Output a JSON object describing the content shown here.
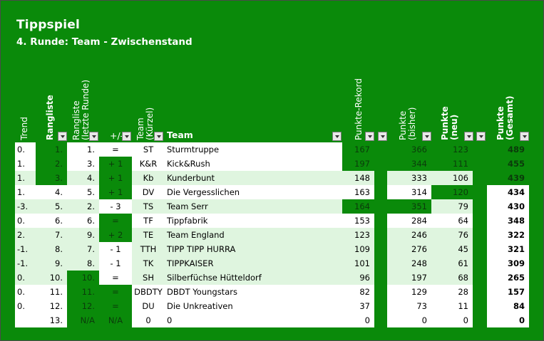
{
  "title": "Tippspiel",
  "subtitle": "4. Runde: Team - Zwischenstand",
  "headers": {
    "trend": "Trend",
    "rangliste": "Rangliste",
    "rangliste_prev": "Rangliste\n(letzte Runde)",
    "plusminus": "+/-",
    "team_short": "Team\n(Kürzel)",
    "team": "Team",
    "rekord": "Punkte-Rekord",
    "bisher": "Punkte\n(bisher)",
    "neu": "Punkte\n(neu)",
    "gesamt": "Punkte\n(Gesamt)"
  },
  "rows": [
    {
      "trend": "0.",
      "rank": "1.",
      "prev": "1.",
      "pm": "=",
      "kz": "ST",
      "team": "Sturmtruppe",
      "rekord": "167",
      "bisher": "366",
      "neu": "123",
      "gesamt": "489"
    },
    {
      "trend": "1.",
      "rank": "2.",
      "prev": "3.",
      "pm": "+ 1",
      "kz": "K&R",
      "team": "Kick&Rush",
      "rekord": "197",
      "bisher": "344",
      "neu": "111",
      "gesamt": "455"
    },
    {
      "trend": "1.",
      "rank": "3.",
      "prev": "4.",
      "pm": "+ 1",
      "kz": "Kb",
      "team": "Kunderbunt",
      "rekord": "148",
      "bisher": "333",
      "neu": "106",
      "gesamt": "439"
    },
    {
      "trend": "1.",
      "rank": "4.",
      "prev": "5.",
      "pm": "+ 1",
      "kz": "DV",
      "team": "Die Vergesslichen",
      "rekord": "163",
      "bisher": "314",
      "neu": "120",
      "gesamt": "434"
    },
    {
      "trend": "-3.",
      "rank": "5.",
      "prev": "2.",
      "pm": "- 3",
      "kz": "TS",
      "team": "Team Serr",
      "rekord": "164",
      "bisher": "351",
      "neu": "79",
      "gesamt": "430"
    },
    {
      "trend": "0.",
      "rank": "6.",
      "prev": "6.",
      "pm": "=",
      "kz": "TF",
      "team": "Tippfabrik",
      "rekord": "153",
      "bisher": "284",
      "neu": "64",
      "gesamt": "348"
    },
    {
      "trend": "2.",
      "rank": "7.",
      "prev": "9.",
      "pm": "+ 2",
      "kz": "TE",
      "team": "Team England",
      "rekord": "123",
      "bisher": "246",
      "neu": "76",
      "gesamt": "322"
    },
    {
      "trend": "-1.",
      "rank": "8.",
      "prev": "7.",
      "pm": "- 1",
      "kz": "TTH",
      "team": "TIPP TIPP HURRA",
      "rekord": "109",
      "bisher": "276",
      "neu": "45",
      "gesamt": "321"
    },
    {
      "trend": "-1.",
      "rank": "9.",
      "prev": "8.",
      "pm": "- 1",
      "kz": "TK",
      "team": "TIPPKAISER",
      "rekord": "101",
      "bisher": "248",
      "neu": "61",
      "gesamt": "309"
    },
    {
      "trend": "0.",
      "rank": "10.",
      "prev": "10.",
      "pm": "=",
      "kz": "SH",
      "team": "Silberfüchse Hütteldorf",
      "rekord": "96",
      "bisher": "197",
      "neu": "68",
      "gesamt": "265"
    },
    {
      "trend": "0.",
      "rank": "11.",
      "prev": "11.",
      "pm": "=",
      "kz": "DBDTY",
      "team": "DBDT Youngstars",
      "rekord": "82",
      "bisher": "129",
      "neu": "28",
      "gesamt": "157"
    },
    {
      "trend": "0.",
      "rank": "12.",
      "prev": "12.",
      "pm": "=",
      "kz": "DU",
      "team": "Die Unkreativen",
      "rekord": "37",
      "bisher": "73",
      "neu": "11",
      "gesamt": "84"
    },
    {
      "trend": "",
      "rank": "13.",
      "prev": "N/A",
      "pm": "N/A",
      "kz": "0",
      "team": "0",
      "rekord": "0",
      "bisher": "0",
      "neu": "0",
      "gesamt": "0"
    }
  ],
  "colors": {
    "sheet_green": "#0a8a0a",
    "light_green": "#dff5df",
    "white": "#ffffff"
  }
}
